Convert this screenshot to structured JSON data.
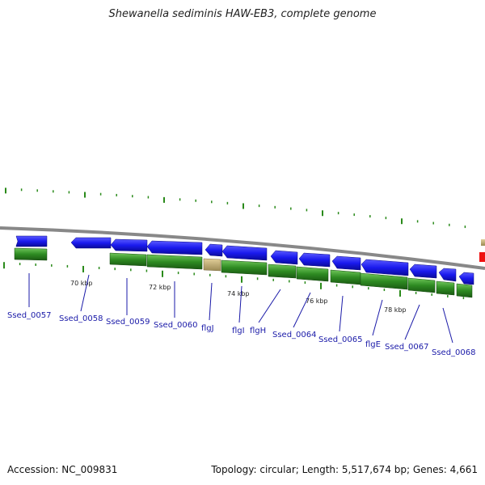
{
  "title": "Shewanella sediminis HAW-EB3, complete genome",
  "footer": {
    "accession": "Accession: NC_009831",
    "summary": "Topology: circular; Length: 5,517,674 bp; Genes: 4,661"
  },
  "colors": {
    "forward_gene": "#1a1aee",
    "reverse_gene": "#2e8b22",
    "backbone": "#888888",
    "tick": "#2a8a1a",
    "label": "#1a1aa8",
    "highlight": "#ee1111"
  },
  "kbp_labels": [
    "70 kbp",
    "72 kbp",
    "74 kbp",
    "76 kbp",
    "78 kbp"
  ],
  "gene_labels": [
    "Ssed_0057",
    "Ssed_0058",
    "Ssed_0059",
    "Ssed_0060",
    "flgJ",
    "flgI",
    "flgH",
    "Ssed_0064",
    "Ssed_0065",
    "flgE",
    "Ssed_0067",
    "Ssed_0068"
  ]
}
